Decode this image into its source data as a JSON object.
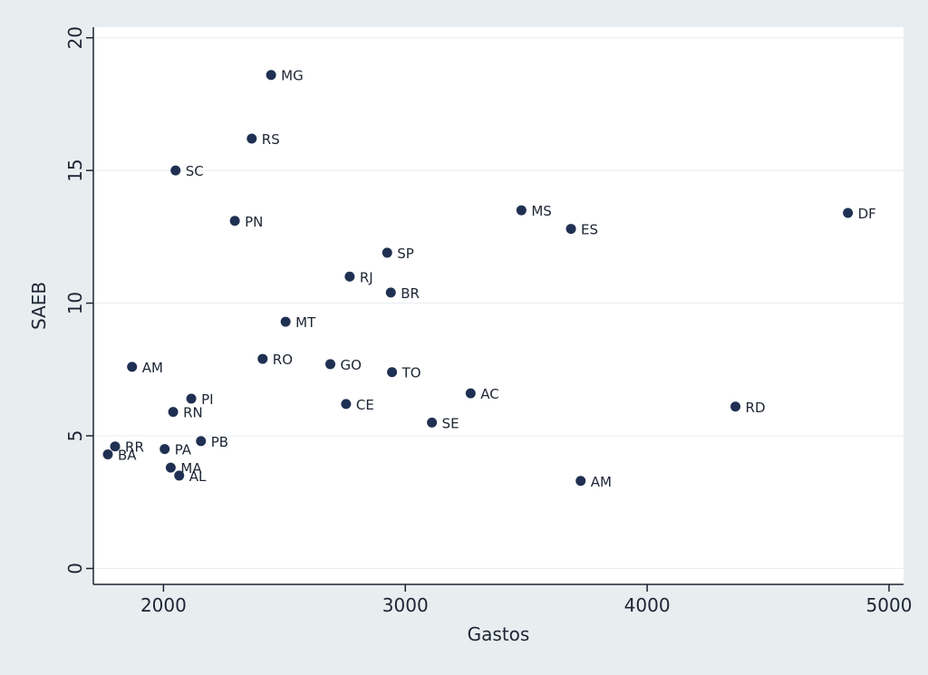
{
  "colors": {
    "outer_background": "#e8edf0",
    "plot_background": "#ffffff",
    "gridline": "#e6ecef",
    "marker": "#1f3052",
    "axis": "#1c2533",
    "text": "#1c2533"
  },
  "chart_data": {
    "type": "scatter",
    "title": "",
    "xlabel": "Gastos",
    "ylabel": "SAEB",
    "xlim": [
      1710,
      5060
    ],
    "ylim": [
      -0.6,
      20.4
    ],
    "x_ticks": [
      2000,
      3000,
      4000,
      5000
    ],
    "y_ticks": [
      0,
      5,
      10,
      15,
      20
    ],
    "grid": "horizontal",
    "legend": "none",
    "points": [
      {
        "label": "MG",
        "x": 2445,
        "y": 18.6
      },
      {
        "label": "RS",
        "x": 2365,
        "y": 16.2
      },
      {
        "label": "SC",
        "x": 2050,
        "y": 15.0
      },
      {
        "label": "PN",
        "x": 2295,
        "y": 13.1
      },
      {
        "label": "MS",
        "x": 3480,
        "y": 13.5
      },
      {
        "label": "ES",
        "x": 3685,
        "y": 12.8
      },
      {
        "label": "DF",
        "x": 4830,
        "y": 13.4
      },
      {
        "label": "SP",
        "x": 2925,
        "y": 11.9
      },
      {
        "label": "RJ",
        "x": 2770,
        "y": 11.0
      },
      {
        "label": "BR",
        "x": 2940,
        "y": 10.4
      },
      {
        "label": "MT",
        "x": 2505,
        "y": 9.3
      },
      {
        "label": "RO",
        "x": 2410,
        "y": 7.9
      },
      {
        "label": "GO",
        "x": 2690,
        "y": 7.7
      },
      {
        "label": "TO",
        "x": 2945,
        "y": 7.4
      },
      {
        "label": "AM",
        "x": 1870,
        "y": 7.6
      },
      {
        "label": "AC",
        "x": 3270,
        "y": 6.6
      },
      {
        "label": "PI",
        "x": 2115,
        "y": 6.4
      },
      {
        "label": "CE",
        "x": 2755,
        "y": 6.2
      },
      {
        "label": "RD",
        "x": 4365,
        "y": 6.1
      },
      {
        "label": "RN",
        "x": 2040,
        "y": 5.9
      },
      {
        "label": "SE",
        "x": 3110,
        "y": 5.5
      },
      {
        "label": "PB",
        "x": 2155,
        "y": 4.8
      },
      {
        "label": "PA",
        "x": 2005,
        "y": 4.5
      },
      {
        "label": "RR",
        "x": 1800,
        "y": 4.6
      },
      {
        "label": "BA",
        "x": 1770,
        "y": 4.3
      },
      {
        "label": "MA",
        "x": 2030,
        "y": 3.8
      },
      {
        "label": "AL",
        "x": 2065,
        "y": 3.5
      },
      {
        "label": "AM",
        "x": 3725,
        "y": 3.3
      }
    ]
  }
}
